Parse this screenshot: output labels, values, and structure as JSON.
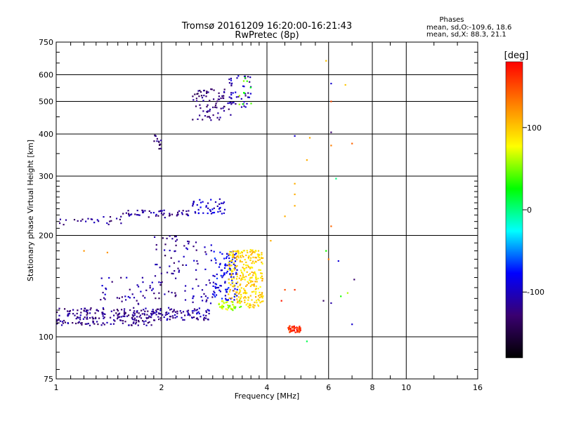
{
  "chart_data": {
    "type": "scatter",
    "title": "Tromsø 20161209 16:20:00-16:21:43",
    "subtitle": "RwPretec (8p)",
    "xlabel": "Frequency [MHz]",
    "ylabel": "Stationary phase Virtual Height [km]",
    "x_scale": "log",
    "y_scale": "log",
    "xlim": [
      1,
      16
    ],
    "ylim": [
      75,
      750
    ],
    "x_ticks": [
      "1",
      "2",
      "4",
      "6",
      "8",
      "10",
      "16"
    ],
    "y_ticks": [
      "75",
      "100",
      "200",
      "300",
      "400",
      "500",
      "600",
      "750"
    ],
    "grid": true,
    "phase_box": {
      "heading": "Phases",
      "line1": "mean, sd,O:-109.6, 18.6",
      "line2": "mean, sd,X:  88.3, 21.1"
    },
    "colorbar": {
      "label": "[deg]",
      "ticks": [
        "100",
        "0",
        "-100"
      ],
      "range": [
        -180,
        180
      ],
      "colors": [
        "#000000",
        "#3a0070",
        "#0000ff",
        "#00ffff",
        "#00ff00",
        "#ffff00",
        "#ff8000",
        "#ff0000"
      ]
    },
    "clusters": [
      {
        "x": [
          1.0,
          1.9
        ],
        "y": [
          108,
          122
        ],
        "phase": -120,
        "count": 210
      },
      {
        "x": [
          1.9,
          2.8
        ],
        "y": [
          112,
          122
        ],
        "phase": -112,
        "count": 90
      },
      {
        "x": [
          1.0,
          1.55
        ],
        "y": [
          215,
          228
        ],
        "phase": -118,
        "count": 25
      },
      {
        "x": [
          1.55,
          2.45
        ],
        "y": [
          226,
          238
        ],
        "phase": -115,
        "count": 55
      },
      {
        "x": [
          2.45,
          3.05
        ],
        "y": [
          232,
          258
        ],
        "phase": -95,
        "count": 45
      },
      {
        "x": [
          2.45,
          3.15
        ],
        "y": [
          440,
          545
        ],
        "phase": -125,
        "count": 80
      },
      {
        "x": [
          3.1,
          3.6
        ],
        "y": [
          480,
          600
        ],
        "phase": -105,
        "count": 45
      },
      {
        "x": [
          3.3,
          3.65
        ],
        "y": [
          490,
          610
        ],
        "phase": 40,
        "count": 10
      },
      {
        "x": [
          2.8,
          3.3
        ],
        "y": [
          128,
          180
        ],
        "phase": -85,
        "count": 110
      },
      {
        "x": [
          1.9,
          2.3
        ],
        "y": [
          130,
          200
        ],
        "phase": -120,
        "count": 50
      },
      {
        "x": [
          2.3,
          2.8
        ],
        "y": [
          125,
          195
        ],
        "phase": -110,
        "count": 45
      },
      {
        "x": [
          3.1,
          3.9
        ],
        "y": [
          122,
          182
        ],
        "phase": 95,
        "count": 280
      },
      {
        "x": [
          2.9,
          3.4
        ],
        "y": [
          120,
          128
        ],
        "phase": 60,
        "count": 40
      },
      {
        "x": [
          4.6,
          5.0
        ],
        "y": [
          103,
          108
        ],
        "phase": 160,
        "count": 45
      },
      {
        "x": [
          1.3,
          1.9
        ],
        "y": [
          125,
          150
        ],
        "phase": -110,
        "count": 40
      },
      {
        "x": [
          1.9,
          2.0
        ],
        "y": [
          360,
          400
        ],
        "phase": -130,
        "count": 14
      }
    ],
    "outliers": [
      {
        "x": 5.9,
        "y": 660,
        "phase": 100
      },
      {
        "x": 6.1,
        "y": 565,
        "phase": -95
      },
      {
        "x": 6.1,
        "y": 500,
        "phase": 150
      },
      {
        "x": 6.7,
        "y": 560,
        "phase": 100
      },
      {
        "x": 6.1,
        "y": 405,
        "phase": -130
      },
      {
        "x": 4.8,
        "y": 395,
        "phase": -95
      },
      {
        "x": 5.3,
        "y": 390,
        "phase": 110
      },
      {
        "x": 6.1,
        "y": 370,
        "phase": 130
      },
      {
        "x": 7.0,
        "y": 375,
        "phase": 140
      },
      {
        "x": 5.2,
        "y": 335,
        "phase": 110
      },
      {
        "x": 6.3,
        "y": 295,
        "phase": 0
      },
      {
        "x": 4.8,
        "y": 285,
        "phase": 110
      },
      {
        "x": 4.8,
        "y": 265,
        "phase": 110
      },
      {
        "x": 4.8,
        "y": 245,
        "phase": 110
      },
      {
        "x": 4.5,
        "y": 228,
        "phase": 110
      },
      {
        "x": 6.1,
        "y": 213,
        "phase": 140
      },
      {
        "x": 4.1,
        "y": 193,
        "phase": 110
      },
      {
        "x": 5.9,
        "y": 180,
        "phase": 30
      },
      {
        "x": 6.0,
        "y": 170,
        "phase": 130
      },
      {
        "x": 6.4,
        "y": 168,
        "phase": -90
      },
      {
        "x": 7.1,
        "y": 148,
        "phase": -130
      },
      {
        "x": 4.5,
        "y": 138,
        "phase": 150
      },
      {
        "x": 4.8,
        "y": 138,
        "phase": 160
      },
      {
        "x": 5.8,
        "y": 128,
        "phase": -135
      },
      {
        "x": 6.5,
        "y": 132,
        "phase": 30
      },
      {
        "x": 6.1,
        "y": 126,
        "phase": -110
      },
      {
        "x": 6.8,
        "y": 135,
        "phase": 60
      },
      {
        "x": 4.4,
        "y": 128,
        "phase": 170
      },
      {
        "x": 7.0,
        "y": 109,
        "phase": -95
      },
      {
        "x": 5.2,
        "y": 97,
        "phase": 10
      },
      {
        "x": 1.4,
        "y": 178,
        "phase": 120
      },
      {
        "x": 1.2,
        "y": 180,
        "phase": 120
      }
    ]
  }
}
